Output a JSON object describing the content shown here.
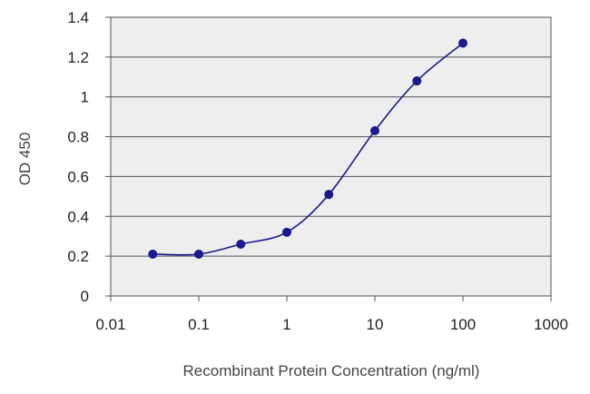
{
  "chart_data": {
    "type": "line",
    "title": "",
    "xlabel": "Recombinant Protein Concentration (ng/ml)",
    "ylabel": "OD 450",
    "x_scale": "log",
    "xlim": [
      0.01,
      1000
    ],
    "ylim": [
      0,
      1.4
    ],
    "x_ticks": [
      "0.01",
      "0.1",
      "1",
      "10",
      "100",
      "1000"
    ],
    "y_ticks": [
      "0",
      "0.2",
      "0.4",
      "0.6",
      "0.8",
      "1",
      "1.2",
      "1.4"
    ],
    "grid": "horizontal",
    "plot_background": "#eeeeee",
    "series": [
      {
        "color": "#1a1a8c",
        "marker": "circle",
        "points": [
          {
            "x": 0.03,
            "y": 0.21
          },
          {
            "x": 0.1,
            "y": 0.21
          },
          {
            "x": 0.3,
            "y": 0.26
          },
          {
            "x": 1,
            "y": 0.32
          },
          {
            "x": 3,
            "y": 0.51
          },
          {
            "x": 10,
            "y": 0.83
          },
          {
            "x": 30,
            "y": 1.08
          },
          {
            "x": 100,
            "y": 1.27
          }
        ]
      }
    ]
  }
}
